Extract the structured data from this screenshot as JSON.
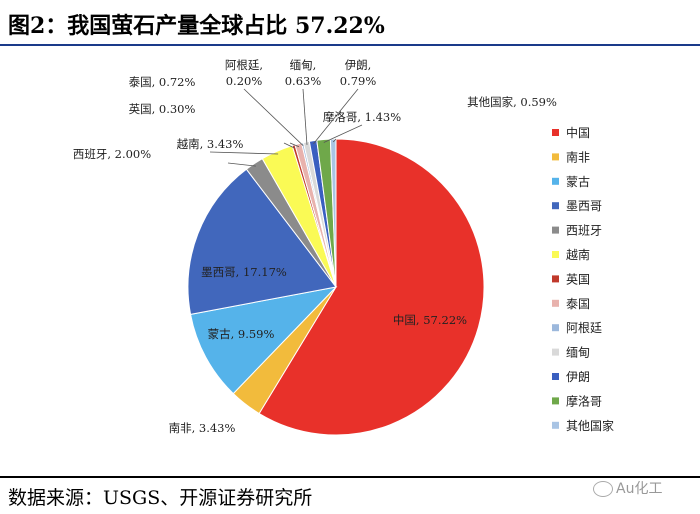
{
  "header": {
    "title": "图2：我国萤石产量全球占比 57.22%"
  },
  "footer": {
    "source": "数据来源：USGS、开源证券研究所",
    "watermark": "Au化工"
  },
  "chart_data": {
    "type": "pie",
    "title": "图2：我国萤石产量全球占比 57.22%",
    "legend_position": "right",
    "slices": [
      {
        "label": "中国",
        "value": 57.22,
        "label_text": "中国, 57.22%",
        "color": "#e8312a"
      },
      {
        "label": "南非",
        "value": 3.43,
        "label_text": "南非, 3.43%",
        "color": "#f2bb3c"
      },
      {
        "label": "蒙古",
        "value": 9.59,
        "label_text": "蒙古, 9.59%",
        "color": "#55b3ea"
      },
      {
        "label": "墨西哥",
        "value": 17.17,
        "label_text": "墨西哥, 17.17%",
        "color": "#4167bc"
      },
      {
        "label": "西班牙",
        "value": 2.0,
        "label_text": "西班牙, 2.00%",
        "color": "#8b8b8b"
      },
      {
        "label": "越南",
        "value": 3.43,
        "label_text": "越南, 3.43%",
        "color": "#fafa55"
      },
      {
        "label": "英国",
        "value": 0.3,
        "label_text": "英国, 0.30%",
        "color": "#c0392b"
      },
      {
        "label": "泰国",
        "value": 0.72,
        "label_text": "泰国, 0.72%",
        "color": "#e8b2ad"
      },
      {
        "label": "阿根廷",
        "value": 0.2,
        "label_text": "阿根廷, 0.20%",
        "color": "#9cb8dc"
      },
      {
        "label": "缅甸",
        "value": 0.63,
        "label_text": "缅甸, 0.63%",
        "color": "#d9d9d9"
      },
      {
        "label": "伊朗",
        "value": 0.79,
        "label_text": "伊朗, 0.79%",
        "color": "#3a5fc0"
      },
      {
        "label": "摩洛哥",
        "value": 1.43,
        "label_text": "摩洛哥, 1.43%",
        "color": "#6fa84a"
      },
      {
        "label": "其他国家",
        "value": 0.59,
        "label_text": "其他国家, 0.59%",
        "color": "#a9c4e4"
      }
    ]
  }
}
